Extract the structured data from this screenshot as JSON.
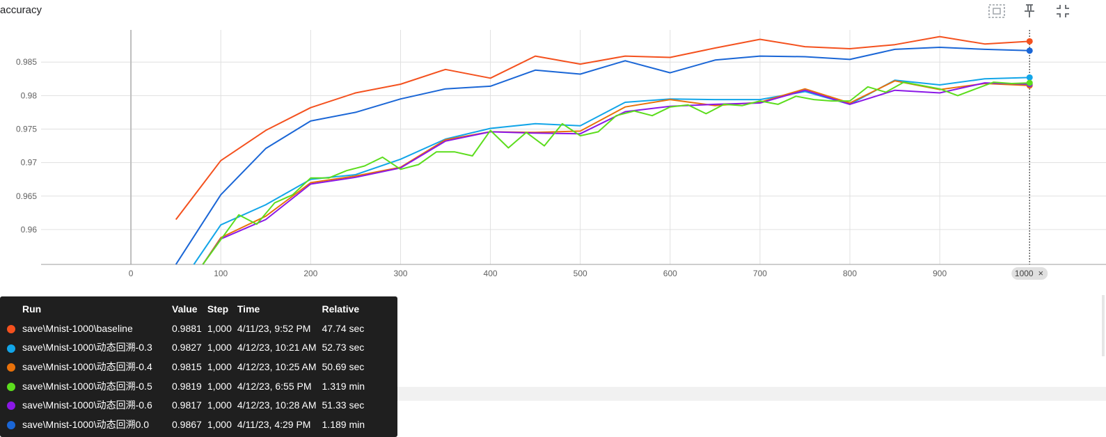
{
  "header": {
    "title": "accuracy",
    "icons": [
      "fit-to-data-icon",
      "pin-icon",
      "collapse-icon"
    ]
  },
  "cursor_step_label": "1000",
  "cursor_close_glyph": "×",
  "chart_data": {
    "type": "line",
    "title": "accuracy",
    "xlabel": "",
    "ylabel": "",
    "x_ticks": [
      "0",
      "100",
      "200",
      "300",
      "400",
      "500",
      "600",
      "700",
      "800",
      "900"
    ],
    "y_ticks": [
      "0.96",
      "0.965",
      "0.97",
      "0.975",
      "0.98",
      "0.985"
    ],
    "xlim": [
      -100,
      1085
    ],
    "ylim": [
      0.9548,
      0.9898
    ],
    "grid": true,
    "series": [
      {
        "name": "save\\Mnist-1000\\baseline",
        "color": "#f4511e",
        "x": [
          50,
          100,
          150,
          200,
          250,
          300,
          350,
          400,
          450,
          500,
          550,
          600,
          650,
          700,
          750,
          800,
          850,
          900,
          950,
          1000
        ],
        "y": [
          0.9615,
          0.9703,
          0.9748,
          0.9782,
          0.9804,
          0.9817,
          0.9839,
          0.9826,
          0.9859,
          0.9847,
          0.9859,
          0.9857,
          0.9871,
          0.9884,
          0.9873,
          0.987,
          0.9876,
          0.9888,
          0.9877,
          0.9881
        ]
      },
      {
        "name": "save\\Mnist-1000\\动态回溯0.0",
        "color": "#1a66d6",
        "x": [
          50,
          100,
          150,
          200,
          250,
          300,
          350,
          400,
          450,
          500,
          550,
          600,
          650,
          700,
          750,
          800,
          850,
          900,
          950,
          1000
        ],
        "y": [
          0.9548,
          0.9652,
          0.9721,
          0.9762,
          0.9775,
          0.9795,
          0.981,
          0.9814,
          0.9838,
          0.9832,
          0.9852,
          0.9834,
          0.9853,
          0.9859,
          0.9858,
          0.9854,
          0.9869,
          0.9872,
          0.9869,
          0.9867
        ]
      },
      {
        "name": "save\\Mnist-1000\\动态回溯-0.3",
        "color": "#12a5e8",
        "x": [
          70,
          100,
          150,
          200,
          250,
          300,
          350,
          400,
          450,
          500,
          550,
          600,
          650,
          700,
          750,
          800,
          850,
          900,
          950,
          1000
        ],
        "y": [
          0.9548,
          0.9607,
          0.9637,
          0.9675,
          0.9682,
          0.9705,
          0.9735,
          0.9751,
          0.9758,
          0.9755,
          0.979,
          0.9795,
          0.9794,
          0.9794,
          0.9806,
          0.9787,
          0.9823,
          0.9816,
          0.9825,
          0.9827
        ]
      },
      {
        "name": "save\\Mnist-1000\\动态回溯-0.4",
        "color": "#e8710a",
        "x": [
          80,
          100,
          150,
          200,
          250,
          300,
          350,
          400,
          450,
          500,
          550,
          600,
          650,
          700,
          750,
          800,
          850,
          900,
          950,
          1000
        ],
        "y": [
          0.9548,
          0.9588,
          0.962,
          0.967,
          0.968,
          0.9693,
          0.9734,
          0.9746,
          0.9745,
          0.9747,
          0.9783,
          0.9794,
          0.9785,
          0.979,
          0.981,
          0.9789,
          0.9822,
          0.9809,
          0.9818,
          0.9815
        ]
      },
      {
        "name": "save\\Mnist-1000\\动态回溯-0.6",
        "color": "#8b17e6",
        "x": [
          80,
          100,
          150,
          200,
          250,
          300,
          350,
          400,
          450,
          500,
          550,
          600,
          650,
          700,
          750,
          800,
          850,
          900,
          950,
          1000
        ],
        "y": [
          0.9548,
          0.9586,
          0.9615,
          0.9668,
          0.9678,
          0.9692,
          0.9732,
          0.9746,
          0.9744,
          0.9743,
          0.9776,
          0.9784,
          0.9787,
          0.9789,
          0.9808,
          0.9787,
          0.9808,
          0.9804,
          0.9819,
          0.9817
        ]
      },
      {
        "name": "save\\Mnist-1000\\动态回溯-0.5",
        "color": "#5cdd1d",
        "x": [
          80,
          100,
          120,
          140,
          160,
          180,
          200,
          220,
          240,
          260,
          280,
          300,
          320,
          340,
          360,
          380,
          400,
          420,
          440,
          460,
          480,
          500,
          520,
          540,
          560,
          580,
          600,
          620,
          640,
          660,
          680,
          700,
          720,
          740,
          760,
          780,
          800,
          820,
          840,
          860,
          880,
          900,
          920,
          940,
          960,
          980,
          1000
        ],
        "y": [
          0.9548,
          0.9585,
          0.9622,
          0.9608,
          0.964,
          0.9652,
          0.9677,
          0.9677,
          0.9688,
          0.9695,
          0.9708,
          0.969,
          0.9697,
          0.9716,
          0.9716,
          0.971,
          0.9748,
          0.9722,
          0.9745,
          0.9725,
          0.9758,
          0.974,
          0.9746,
          0.977,
          0.9777,
          0.977,
          0.9783,
          0.9786,
          0.9773,
          0.9787,
          0.9785,
          0.9792,
          0.9787,
          0.9799,
          0.9794,
          0.9792,
          0.9792,
          0.9813,
          0.9805,
          0.982,
          0.9815,
          0.981,
          0.98,
          0.981,
          0.982,
          0.9818,
          0.9819
        ]
      }
    ]
  },
  "tooltip": {
    "headers": {
      "run": "Run",
      "value": "Value",
      "step": "Step",
      "time": "Time",
      "relative": "Relative"
    },
    "rows": [
      {
        "color": "#f4511e",
        "run": "save\\Mnist-1000\\baseline",
        "value": "0.9881",
        "step": "1,000",
        "time": "4/11/23, 9:52 PM",
        "relative": "47.74 sec"
      },
      {
        "color": "#12a5e8",
        "run": "save\\Mnist-1000\\动态回溯-0.3",
        "value": "0.9827",
        "step": "1,000",
        "time": "4/12/23, 10:21 AM",
        "relative": "52.73 sec"
      },
      {
        "color": "#e8710a",
        "run": "save\\Mnist-1000\\动态回溯-0.4",
        "value": "0.9815",
        "step": "1,000",
        "time": "4/12/23, 10:25 AM",
        "relative": "50.69 sec"
      },
      {
        "color": "#5cdd1d",
        "run": "save\\Mnist-1000\\动态回溯-0.5",
        "value": "0.9819",
        "step": "1,000",
        "time": "4/12/23, 6:55 PM",
        "relative": "1.319 min"
      },
      {
        "color": "#8b17e6",
        "run": "save\\Mnist-1000\\动态回溯-0.6",
        "value": "0.9817",
        "step": "1,000",
        "time": "4/12/23, 10:28 AM",
        "relative": "51.33 sec"
      },
      {
        "color": "#1a66d6",
        "run": "save\\Mnist-1000\\动态回溯0.0",
        "value": "0.9867",
        "step": "1,000",
        "time": "4/11/23, 4:29 PM",
        "relative": "1.189 min"
      }
    ]
  }
}
